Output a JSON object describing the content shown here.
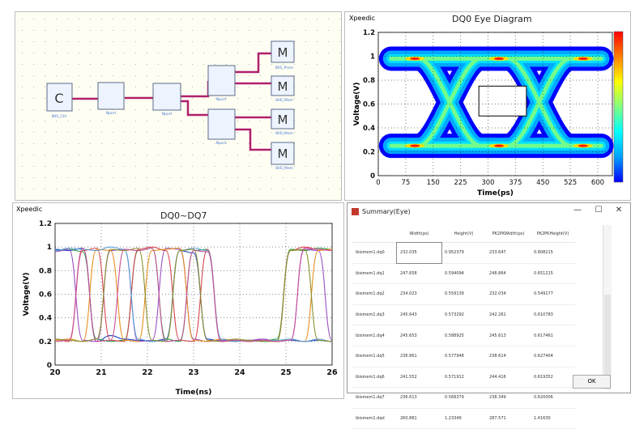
{
  "schematic": {
    "blocks": [
      {
        "letter": "C",
        "sublabel": "IBIS_Ctrl"
      },
      {
        "label": "Nport"
      },
      {
        "label": "Nport"
      },
      {
        "label": "Nport"
      },
      {
        "label": "Nport"
      }
    ],
    "monitors": [
      {
        "letter": "M",
        "sublabel": "IBIS_Prom"
      },
      {
        "letter": "M",
        "sublabel": "IBIS_Mem"
      },
      {
        "letter": "M",
        "sublabel": "IBIS_Mem"
      },
      {
        "letter": "M",
        "sublabel": "IBIS_Mem"
      }
    ]
  },
  "eye_chart": {
    "brand": "Xpeedic",
    "chart_data": {
      "type": "heatmap",
      "title": "DQ0  Eye Diagram",
      "xlabel": "Time(ps)",
      "ylabel": "Voltage(V)",
      "xlim": [
        0,
        640
      ],
      "ylim": [
        0,
        1.2
      ],
      "x_ticks": [
        0,
        75,
        150,
        225,
        300,
        375,
        450,
        525,
        600
      ],
      "y_ticks": [
        0,
        0.2,
        0.4,
        0.6,
        0.8,
        1,
        1.2
      ],
      "y_tick_labels": [
        "0",
        "0.2",
        "0.4",
        "0.6",
        "0.8",
        "1",
        "1.2"
      ],
      "eye_mask": {
        "t_start": 275,
        "t_end": 405,
        "v_low": 0.5,
        "v_high": 0.75
      },
      "colorbar": [
        "#0000ff",
        "#00a0ff",
        "#00ffff",
        "#80ff80",
        "#ffff00",
        "#ff8000",
        "#ff0000"
      ]
    }
  },
  "dq_chart": {
    "brand": "Xpeedic",
    "chart_data": {
      "type": "line",
      "title": "DQ0~DQ7",
      "xlabel": "Time(ns)",
      "ylabel": "Voltage(V)",
      "xlim": [
        20,
        26
      ],
      "ylim": [
        0,
        1.2
      ],
      "x_ticks": [
        20,
        21,
        22,
        23,
        24,
        25,
        26
      ],
      "y_ticks": [
        0,
        0.2,
        0.4,
        0.6,
        0.8,
        1,
        1.2
      ],
      "y_tick_labels": [
        "0",
        "0.2",
        "0.4",
        "0.6",
        "0.8",
        "1",
        "1.2"
      ],
      "series": [
        {
          "color": "#1f3fbf",
          "x": [
            20,
            20.3,
            20.6,
            20.9,
            21.2,
            21.5,
            21.8,
            22.1,
            22.4,
            22.7,
            23.0,
            23.3,
            23.6,
            23.9,
            24.2,
            24.5,
            24.8,
            25.1,
            25.4,
            25.7,
            26
          ],
          "y": [
            0.98,
            0.97,
            0.99,
            0.2,
            0.25,
            0.22,
            0.21,
            0.2,
            0.22,
            0.97,
            0.95,
            0.22,
            0.2,
            0.21,
            0.2,
            0.22,
            0.2,
            0.21,
            0.2,
            0.21,
            0.2
          ]
        },
        {
          "color": "#2e9f3f",
          "x": [
            20,
            20.3,
            20.6,
            20.9,
            21.2,
            21.5,
            21.8,
            22.1,
            22.4,
            22.7,
            23.0,
            23.3,
            23.6,
            23.9,
            24.2,
            24.5,
            24.8,
            25.1,
            25.4,
            25.7,
            26
          ],
          "y": [
            0.97,
            0.98,
            0.96,
            0.22,
            0.2,
            0.21,
            0.97,
            0.99,
            0.22,
            0.2,
            0.97,
            0.98,
            0.21,
            0.2,
            0.21,
            0.2,
            0.22,
            0.98,
            0.97,
            0.99,
            0.98
          ]
        },
        {
          "color": "#d64550",
          "x": [
            20,
            20.3,
            20.6,
            20.9,
            21.2,
            21.5,
            21.8,
            22.1,
            22.4,
            22.7,
            23.0,
            23.3,
            23.6,
            23.9,
            24.2,
            24.5,
            24.8,
            25.1,
            25.4,
            25.7,
            26
          ],
          "y": [
            0.22,
            0.2,
            0.97,
            0.99,
            0.21,
            0.2,
            0.98,
            1.0,
            0.97,
            0.21,
            0.2,
            0.98,
            0.2,
            0.21,
            0.2,
            0.21,
            0.2,
            0.97,
            1.0,
            0.98,
            0.97
          ]
        },
        {
          "color": "#9b4fc4",
          "x": [
            20,
            20.3,
            20.6,
            20.9,
            21.2,
            21.5,
            21.8,
            22.1,
            22.4,
            22.7,
            23.0,
            23.3,
            23.6,
            23.9,
            24.2,
            24.5,
            24.8,
            25.1,
            25.4,
            25.7,
            26
          ],
          "y": [
            0.96,
            0.98,
            0.21,
            0.2,
            0.97,
            0.98,
            0.2,
            0.21,
            0.99,
            0.98,
            0.22,
            0.2,
            0.21,
            0.2,
            0.21,
            0.22,
            0.2,
            0.21,
            0.98,
            0.97,
            0.21
          ]
        },
        {
          "color": "#e89020",
          "x": [
            20,
            20.3,
            20.6,
            20.9,
            21.2,
            21.5,
            21.8,
            22.1,
            22.4,
            22.7,
            23.0,
            23.3,
            23.6,
            23.9,
            24.2,
            24.5,
            24.8,
            25.1,
            25.4,
            25.7,
            26
          ],
          "y": [
            0.21,
            0.22,
            0.2,
            0.98,
            0.97,
            0.21,
            0.2,
            0.97,
            0.98,
            0.99,
            0.21,
            0.2,
            0.22,
            0.21,
            0.2,
            0.21,
            0.2,
            0.22,
            0.2,
            0.97,
            0.98
          ]
        },
        {
          "color": "#5aa0d8",
          "x": [
            20,
            20.3,
            20.6,
            20.9,
            21.2,
            21.5,
            21.8,
            22.1,
            22.4,
            22.7,
            23.0,
            23.3,
            23.6,
            23.9,
            24.2,
            24.5,
            24.8,
            25.1,
            25.4,
            25.7,
            26
          ],
          "y": [
            0.97,
            0.99,
            0.98,
            0.97,
            1.0,
            0.98,
            0.22,
            0.2,
            0.21,
            0.97,
            0.99,
            0.97,
            0.22,
            0.2,
            0.21,
            0.2,
            0.21,
            0.22,
            0.2,
            0.22,
            0.2
          ]
        },
        {
          "color": "#8a8f2a",
          "x": [
            20,
            20.3,
            20.6,
            20.9,
            21.2,
            21.5,
            21.8,
            22.1,
            22.4,
            22.7,
            23.0,
            23.3,
            23.6,
            23.9,
            24.2,
            24.5,
            24.8,
            25.1,
            25.4,
            25.7,
            26
          ],
          "y": [
            0.22,
            0.21,
            0.2,
            0.22,
            0.98,
            0.97,
            0.99,
            0.21,
            0.2,
            0.97,
            0.98,
            0.21,
            0.2,
            0.22,
            0.21,
            0.2,
            0.2,
            0.97,
            0.98,
            0.21,
            0.2
          ]
        },
        {
          "color": "#c8509a",
          "x": [
            20,
            20.3,
            20.6,
            20.9,
            21.2,
            21.5,
            21.8,
            22.1,
            22.4,
            22.7,
            23.0,
            23.3,
            23.6,
            23.9,
            24.2,
            24.5,
            24.8,
            25.1,
            25.4,
            25.7,
            26
          ],
          "y": [
            0.2,
            0.21,
            0.99,
            0.2,
            0.21,
            0.98,
            0.97,
            0.99,
            0.2,
            0.21,
            0.97,
            0.96,
            0.2,
            0.21,
            0.2,
            0.21,
            0.2,
            0.21,
            0.99,
            0.98,
            0.97
          ]
        }
      ]
    }
  },
  "summary": {
    "title": "Summary(Eye)",
    "minimize": "—",
    "maximize": "☐",
    "close": "✕",
    "ok_label": "OK",
    "columns": [
      "",
      "Width(ps)",
      "Height(V)",
      "PK2PKWidth(ps)",
      "PK2PKHeight(V)"
    ],
    "rows": [
      [
        "ibismem1.dq0",
        "232.035",
        "0.952379",
        "233.647",
        "0.808215"
      ],
      [
        "ibismem1.dq1",
        "247.658",
        "0.594094",
        "248.864",
        "0.651215"
      ],
      [
        "ibismem1.dq2",
        "234.023",
        "0.559139",
        "232.034",
        "0.549177"
      ],
      [
        "ibismem1.dq3",
        "245.643",
        "0.573292",
        "242.261",
        "0.610783"
      ],
      [
        "ibismem1.dq4",
        "245.653",
        "0.588925",
        "245.613",
        "0.617461"
      ],
      [
        "ibismem1.dq5",
        "236.861",
        "0.577948",
        "238.614",
        "0.627404"
      ],
      [
        "ibismem1.dq6",
        "241.552",
        "0.571912",
        "244.416",
        "0.619352"
      ],
      [
        "ibismem1.dq7",
        "236.613",
        "0.568379",
        "238.349",
        "0.620006"
      ],
      [
        "ibismem1.dqd",
        "260.881",
        "1.23349",
        "287.571",
        "1.41630"
      ]
    ]
  }
}
